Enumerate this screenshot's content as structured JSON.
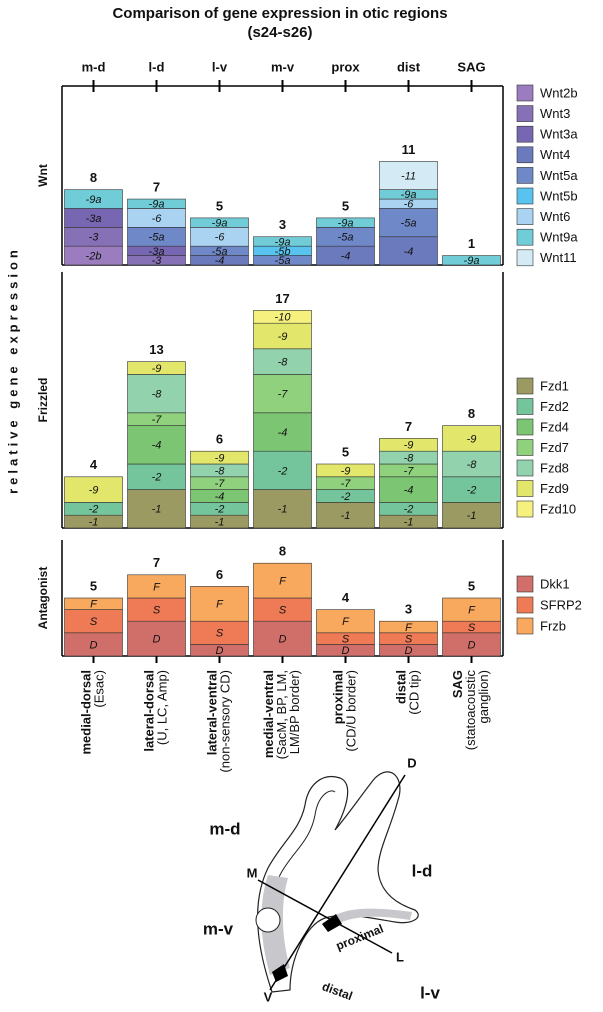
{
  "title": "Comparison of gene expression in otic regions",
  "subtitle": "(s24-s26)",
  "y_label": "relative gene expression",
  "chart_data": [
    {
      "type": "bar",
      "stacked": true,
      "label": "Wnt",
      "categories": [
        "m-d",
        "l-d",
        "l-v",
        "m-v",
        "prox",
        "dist",
        "SAG"
      ],
      "category_names": [
        "medial-dorsal",
        "lateral-dorsal",
        "lateral-ventral",
        "medial-ventral",
        "proximal",
        "distal",
        "SAG"
      ],
      "category_notes": [
        [
          "(Esac)"
        ],
        [
          "(U, LC, Amp)"
        ],
        [
          "(non-sensory CD)"
        ],
        [
          "(SacM, BP, LM,",
          "LM/BP border)"
        ],
        [
          "(CD/U border)"
        ],
        [
          "(CD tip)"
        ],
        [
          "(statoacoustic",
          "ganglion)"
        ]
      ],
      "ylim": [
        0,
        19
      ],
      "totals": [
        8,
        7,
        5,
        3,
        5,
        11,
        1
      ],
      "series": [
        {
          "name": "Wnt2b",
          "short": "-2b",
          "color": "#9a7cbf",
          "values": [
            2,
            0,
            0,
            0,
            0,
            0,
            0
          ]
        },
        {
          "name": "Wnt3",
          "short": "-3",
          "color": "#8670b6",
          "values": [
            2,
            1,
            0,
            0,
            0,
            0,
            0
          ]
        },
        {
          "name": "Wnt3a",
          "short": "-3a",
          "color": "#7767b2",
          "values": [
            2,
            1,
            0,
            0,
            0,
            0,
            0
          ]
        },
        {
          "name": "Wnt4",
          "short": "-4",
          "color": "#6b79bd",
          "values": [
            0,
            0,
            1,
            0,
            2,
            3,
            0
          ]
        },
        {
          "name": "Wnt5a",
          "short": "-5a",
          "color": "#6f88c7",
          "values": [
            0,
            2,
            1,
            1,
            2,
            3,
            0
          ]
        },
        {
          "name": "Wnt5b",
          "short": "-5b",
          "color": "#58c3ee",
          "values": [
            0,
            0,
            0,
            1,
            0,
            0,
            0
          ]
        },
        {
          "name": "Wnt6",
          "short": "-6",
          "color": "#a9d3f1",
          "values": [
            0,
            2,
            2,
            0,
            0,
            1,
            0
          ]
        },
        {
          "name": "Wnt9a",
          "short": "-9a",
          "color": "#70cdd7",
          "values": [
            2,
            1,
            1,
            1,
            1,
            1,
            1
          ]
        },
        {
          "name": "Wnt11",
          "short": "-11",
          "color": "#d4ebf5",
          "values": [
            0,
            0,
            0,
            0,
            0,
            3,
            0
          ]
        }
      ]
    },
    {
      "type": "bar",
      "stacked": true,
      "label": "Frizzled",
      "ylim": [
        0,
        20
      ],
      "totals": [
        4,
        13,
        6,
        17,
        5,
        7,
        8
      ],
      "series": [
        {
          "name": "Fzd1",
          "short": "-1",
          "color": "#9b9a62",
          "values": [
            1,
            3,
            1,
            3,
            2,
            1,
            2
          ]
        },
        {
          "name": "Fzd2",
          "short": "-2",
          "color": "#74c59c",
          "values": [
            1,
            2,
            1,
            3,
            1,
            1,
            2
          ]
        },
        {
          "name": "Fzd4",
          "short": "-4",
          "color": "#7cc573",
          "values": [
            0,
            3,
            1,
            3,
            0,
            2,
            0
          ]
        },
        {
          "name": "Fzd7",
          "short": "-7",
          "color": "#8fd17d",
          "values": [
            0,
            1,
            1,
            3,
            1,
            1,
            0
          ]
        },
        {
          "name": "Fzd8",
          "short": "-8",
          "color": "#92d2ad",
          "values": [
            0,
            3,
            1,
            2,
            0,
            1,
            2
          ]
        },
        {
          "name": "Fzd9",
          "short": "-9",
          "color": "#e2e66b",
          "values": [
            2,
            1,
            1,
            2,
            1,
            1,
            2
          ]
        },
        {
          "name": "Fzd10",
          "short": "-10",
          "color": "#f6f17f",
          "values": [
            0,
            0,
            0,
            1,
            0,
            0,
            0
          ]
        }
      ]
    },
    {
      "type": "bar",
      "stacked": true,
      "label": "Antagonist",
      "ylim": [
        0,
        10
      ],
      "totals": [
        5,
        7,
        6,
        8,
        4,
        3,
        5
      ],
      "series": [
        {
          "name": "Dkk1",
          "short": "D",
          "color": "#d06f69",
          "values": [
            2,
            3,
            1,
            3,
            1,
            1,
            2
          ]
        },
        {
          "name": "SFRP2",
          "short": "S",
          "color": "#ee7a56",
          "values": [
            2,
            2,
            2,
            2,
            1,
            1,
            1
          ]
        },
        {
          "name": "Frzb",
          "short": "F",
          "color": "#f8a95e",
          "values": [
            1,
            2,
            3,
            3,
            2,
            1,
            2
          ]
        }
      ]
    }
  ],
  "diagram": {
    "labels": [
      "m-d",
      "l-d",
      "m-v",
      "l-v",
      "D",
      "M",
      "L",
      "V",
      "proximal",
      "distal"
    ]
  }
}
